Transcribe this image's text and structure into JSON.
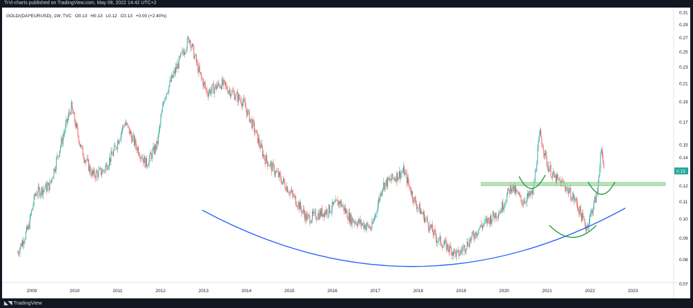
{
  "header": {
    "published": "TrVi-charts published on TradingView.com, May 08, 2022 14:42 UTC+2"
  },
  "legend": {
    "symbol": "GOLD/(DAI*EURUSD), 1W, TVC",
    "open": "O0.13",
    "high": "H0.13",
    "low": "L0.12",
    "close": "C0.13",
    "change": "+0.00 (+2.40%)"
  },
  "footer": {
    "logo": "TradingView"
  },
  "price_badge": "0.13",
  "colors": {
    "up": "#26a69a",
    "down": "#ef5350",
    "blue_arc": "#2962ff",
    "green_arcs": "#22a040",
    "zone": "#a5d6a7"
  },
  "chart_data": {
    "type": "candlestick",
    "x_ticks": [
      "2009",
      "2010",
      "2011",
      "2012",
      "2013",
      "2014",
      "2015",
      "2016",
      "2017",
      "2018",
      "2019",
      "2020",
      "2021",
      "2022",
      "2023"
    ],
    "y_ticks": [
      "0.31",
      "0.29",
      "0.27",
      "0.25",
      "0.23",
      "0.21",
      "0.19",
      "0.17",
      "0.15",
      "0.14",
      "0.12",
      "0.11",
      "0.10",
      "0.09",
      "0.08",
      "0.07"
    ],
    "y_scale": "log",
    "last_value": 0.13,
    "series_close_approx": [
      {
        "date": "2008-09",
        "v": 0.083
      },
      {
        "date": "2008-12",
        "v": 0.095
      },
      {
        "date": "2009-02",
        "v": 0.115
      },
      {
        "date": "2009-06",
        "v": 0.12
      },
      {
        "date": "2009-12",
        "v": 0.185
      },
      {
        "date": "2010-03",
        "v": 0.145
      },
      {
        "date": "2010-06",
        "v": 0.127
      },
      {
        "date": "2010-09",
        "v": 0.13
      },
      {
        "date": "2010-12",
        "v": 0.145
      },
      {
        "date": "2011-03",
        "v": 0.17
      },
      {
        "date": "2011-06",
        "v": 0.15
      },
      {
        "date": "2011-09",
        "v": 0.135
      },
      {
        "date": "2011-12",
        "v": 0.15
      },
      {
        "date": "2012-02",
        "v": 0.195
      },
      {
        "date": "2012-09",
        "v": 0.27
      },
      {
        "date": "2012-12",
        "v": 0.22
      },
      {
        "date": "2013-02",
        "v": 0.2
      },
      {
        "date": "2013-06",
        "v": 0.21
      },
      {
        "date": "2013-12",
        "v": 0.19
      },
      {
        "date": "2014-03",
        "v": 0.165
      },
      {
        "date": "2014-06",
        "v": 0.14
      },
      {
        "date": "2014-12",
        "v": 0.12
      },
      {
        "date": "2015-03",
        "v": 0.11
      },
      {
        "date": "2015-06",
        "v": 0.1
      },
      {
        "date": "2015-12",
        "v": 0.105
      },
      {
        "date": "2016-03",
        "v": 0.11
      },
      {
        "date": "2016-06",
        "v": 0.1
      },
      {
        "date": "2016-12",
        "v": 0.095
      },
      {
        "date": "2017-03",
        "v": 0.12
      },
      {
        "date": "2017-09",
        "v": 0.13
      },
      {
        "date": "2017-12",
        "v": 0.11
      },
      {
        "date": "2018-03",
        "v": 0.1
      },
      {
        "date": "2018-06",
        "v": 0.09
      },
      {
        "date": "2018-12",
        "v": 0.082
      },
      {
        "date": "2019-03",
        "v": 0.088
      },
      {
        "date": "2019-06",
        "v": 0.095
      },
      {
        "date": "2019-12",
        "v": 0.105
      },
      {
        "date": "2020-03",
        "v": 0.12
      },
      {
        "date": "2020-06",
        "v": 0.11
      },
      {
        "date": "2020-09",
        "v": 0.115
      },
      {
        "date": "2020-11",
        "v": 0.16
      },
      {
        "date": "2021-01",
        "v": 0.135
      },
      {
        "date": "2021-03",
        "v": 0.125
      },
      {
        "date": "2021-06",
        "v": 0.12
      },
      {
        "date": "2021-09",
        "v": 0.11
      },
      {
        "date": "2021-12",
        "v": 0.095
      },
      {
        "date": "2022-03",
        "v": 0.115
      },
      {
        "date": "2022-04",
        "v": 0.145
      },
      {
        "date": "2022-05",
        "v": 0.13
      }
    ],
    "annotations": [
      "rounded bottom arc (blue)",
      "horizontal green zone ~0.12",
      "green cup arcs"
    ]
  }
}
